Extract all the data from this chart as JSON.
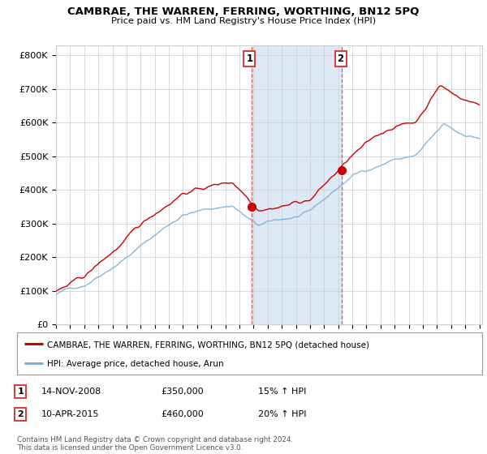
{
  "title": "CAMBRAE, THE WARREN, FERRING, WORTHING, BN12 5PQ",
  "subtitle": "Price paid vs. HM Land Registry's House Price Index (HPI)",
  "ylabel_ticks": [
    "£0",
    "£100K",
    "£200K",
    "£300K",
    "£400K",
    "£500K",
    "£600K",
    "£700K",
    "£800K"
  ],
  "ytick_vals": [
    0,
    100000,
    200000,
    300000,
    400000,
    500000,
    600000,
    700000,
    800000
  ],
  "ylim": [
    0,
    830000
  ],
  "xlim_start": 1995.3,
  "xlim_end": 2025.2,
  "marker1_x": 2008.87,
  "marker1_y": 350000,
  "marker2_x": 2015.27,
  "marker2_y": 460000,
  "shade_xmin": 2008.87,
  "shade_xmax": 2015.27,
  "legend_line1": "CAMBRAE, THE WARREN, FERRING, WORTHING, BN12 5PQ (detached house)",
  "legend_line2": "HPI: Average price, detached house, Arun",
  "table_rows": [
    [
      "1",
      "14-NOV-2008",
      "£350,000",
      "15% ↑ HPI"
    ],
    [
      "2",
      "10-APR-2015",
      "£460,000",
      "20% ↑ HPI"
    ]
  ],
  "footer": "Contains HM Land Registry data © Crown copyright and database right 2024.\nThis data is licensed under the Open Government Licence v3.0.",
  "line_red_color": "#cc0000",
  "line_blue_color": "#7bafd4",
  "shade_color": "#dde9f5",
  "grid_color": "#cccccc",
  "background_color": "#ffffff"
}
